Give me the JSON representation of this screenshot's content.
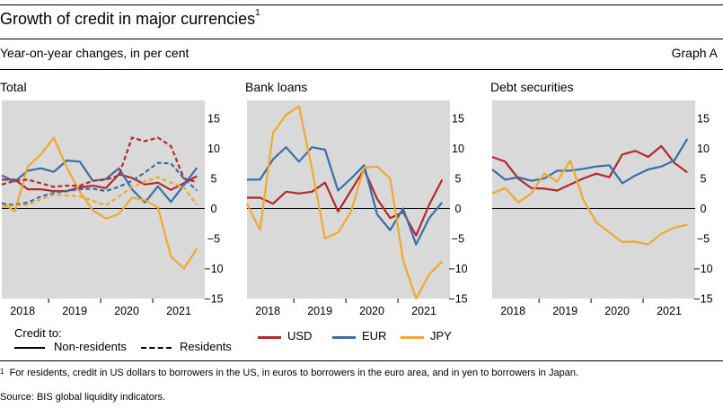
{
  "header": {
    "title": "Growth of credit in major currencies",
    "title_note": "1",
    "subtitle": "Year-on-year changes, in per cent",
    "graph_label": "Graph A"
  },
  "chart_data": [
    {
      "type": "line",
      "title": "Total",
      "ylim": [
        -15,
        18
      ],
      "yticks": [
        15,
        10,
        5,
        0,
        -5,
        -10,
        -15
      ],
      "xlim": [
        2017.6,
        2021.5
      ],
      "xticks": [
        {
          "x": 2018.0,
          "label": "2018"
        },
        {
          "x": 2019.0,
          "label": "2019"
        },
        {
          "x": 2020.0,
          "label": "2020"
        },
        {
          "x": 2021.0,
          "label": "2021"
        }
      ],
      "series": [
        {
          "currency": "USD",
          "credit_to": "Non-residents",
          "style": "solid",
          "x": [
            2017.6,
            2017.85,
            2018.1,
            2018.35,
            2018.6,
            2018.85,
            2019.1,
            2019.35,
            2019.6,
            2019.85,
            2020.1,
            2020.35,
            2020.6,
            2020.85,
            2021.1,
            2021.35
          ],
          "values": [
            4.8,
            4.8,
            3.2,
            3.2,
            2.9,
            2.9,
            3.5,
            3.8,
            3.4,
            5.7,
            5.1,
            4.0,
            4.3,
            3.1,
            4.2,
            5.4
          ]
        },
        {
          "currency": "EUR",
          "credit_to": "Non-residents",
          "style": "solid",
          "x": [
            2017.6,
            2017.85,
            2018.1,
            2018.35,
            2018.6,
            2018.85,
            2019.1,
            2019.35,
            2019.6,
            2019.85,
            2020.1,
            2020.35,
            2020.6,
            2020.85,
            2021.1,
            2021.35
          ],
          "values": [
            5.5,
            4.5,
            6.3,
            6.7,
            6.1,
            8.0,
            7.8,
            4.6,
            4.9,
            6.7,
            3.2,
            1.0,
            3.7,
            1.1,
            3.9,
            6.8
          ]
        },
        {
          "currency": "JPY",
          "credit_to": "Non-residents",
          "style": "solid",
          "x": [
            2017.6,
            2017.85,
            2018.1,
            2018.35,
            2018.6,
            2018.85,
            2019.1,
            2019.35,
            2019.6,
            2019.85,
            2020.1,
            2020.35,
            2020.6,
            2020.85,
            2021.1,
            2021.35
          ],
          "values": [
            1.0,
            -0.5,
            7.0,
            9.0,
            11.8,
            6.8,
            2.8,
            -0.3,
            -1.7,
            -0.9,
            1.8,
            1.4,
            0.2,
            -8.0,
            -10.0,
            -6.7
          ]
        },
        {
          "currency": "USD",
          "credit_to": "Residents",
          "style": "dashed",
          "x": [
            2017.6,
            2017.85,
            2018.1,
            2018.35,
            2018.6,
            2018.85,
            2019.1,
            2019.35,
            2019.6,
            2019.85,
            2020.1,
            2020.35,
            2020.6,
            2020.85,
            2021.1,
            2021.35
          ],
          "values": [
            4.0,
            4.6,
            4.8,
            4.2,
            3.6,
            3.8,
            3.8,
            4.6,
            4.8,
            5.5,
            11.8,
            11.2,
            11.8,
            10.4,
            5.0,
            4.4
          ]
        },
        {
          "currency": "EUR",
          "credit_to": "Residents",
          "style": "dashed",
          "x": [
            2017.6,
            2017.85,
            2018.1,
            2018.35,
            2018.6,
            2018.85,
            2019.1,
            2019.35,
            2019.6,
            2019.85,
            2020.1,
            2020.35,
            2020.6,
            2020.85,
            2021.1,
            2021.35
          ],
          "values": [
            0.8,
            0.6,
            1.0,
            2.0,
            2.6,
            2.9,
            3.2,
            3.3,
            2.9,
            3.6,
            4.6,
            6.0,
            7.6,
            7.5,
            5.0,
            3.0
          ]
        },
        {
          "currency": "JPY",
          "credit_to": "Residents",
          "style": "dashed",
          "x": [
            2017.6,
            2017.85,
            2018.1,
            2018.35,
            2018.6,
            2018.85,
            2019.1,
            2019.35,
            2019.6,
            2019.85,
            2020.1,
            2020.35,
            2020.6,
            2020.85,
            2021.1,
            2021.35
          ],
          "values": [
            0.2,
            0.5,
            0.6,
            1.5,
            2.3,
            2.2,
            2.0,
            1.3,
            0.5,
            2.0,
            3.6,
            4.5,
            5.2,
            4.3,
            3.5,
            0.6
          ]
        }
      ]
    },
    {
      "type": "line",
      "title": "Bank loans",
      "ylim": [
        -15,
        18
      ],
      "yticks": [
        15,
        10,
        5,
        0,
        -5,
        -10,
        -15
      ],
      "xlim": [
        2017.6,
        2021.5
      ],
      "xticks": [
        {
          "x": 2018.0,
          "label": "2018"
        },
        {
          "x": 2019.0,
          "label": "2019"
        },
        {
          "x": 2020.0,
          "label": "2020"
        },
        {
          "x": 2021.0,
          "label": "2021"
        }
      ],
      "series": [
        {
          "currency": "USD",
          "x": [
            2017.6,
            2017.85,
            2018.1,
            2018.35,
            2018.6,
            2018.85,
            2019.1,
            2019.35,
            2019.6,
            2019.85,
            2020.1,
            2020.35,
            2020.6,
            2020.85,
            2021.1,
            2021.35
          ],
          "values": [
            1.8,
            1.8,
            0.8,
            2.8,
            2.5,
            2.8,
            4.3,
            -0.5,
            3.0,
            6.5,
            1.6,
            -1.6,
            -0.6,
            -4.5,
            0.6,
            4.8
          ]
        },
        {
          "currency": "EUR",
          "x": [
            2017.6,
            2017.85,
            2018.1,
            2018.35,
            2018.6,
            2018.85,
            2019.1,
            2019.35,
            2019.6,
            2019.85,
            2020.1,
            2020.35,
            2020.6,
            2020.85,
            2021.1,
            2021.35
          ],
          "values": [
            4.8,
            4.8,
            8.2,
            10.2,
            7.8,
            10.2,
            9.8,
            3.0,
            5.0,
            7.2,
            -1.0,
            -3.6,
            0.0,
            -6.0,
            -1.6,
            1.0
          ]
        },
        {
          "currency": "JPY",
          "x": [
            2017.6,
            2017.85,
            2018.1,
            2018.35,
            2018.6,
            2018.85,
            2019.1,
            2019.35,
            2019.6,
            2019.85,
            2020.1,
            2020.35,
            2020.6,
            2020.85,
            2021.1,
            2021.35
          ],
          "values": [
            0.8,
            -3.6,
            12.6,
            15.6,
            17.0,
            6.6,
            -5.0,
            -4.0,
            -0.5,
            6.8,
            7.0,
            5.0,
            -8.6,
            -15.0,
            -11.0,
            -8.8
          ]
        }
      ]
    },
    {
      "type": "line",
      "title": "Debt securities",
      "ylim": [
        -15,
        18
      ],
      "yticks": [
        15,
        10,
        5,
        0,
        -5,
        -10,
        -15
      ],
      "xlim": [
        2017.6,
        2021.5
      ],
      "xticks": [
        {
          "x": 2018.0,
          "label": "2018"
        },
        {
          "x": 2019.0,
          "label": "2019"
        },
        {
          "x": 2020.0,
          "label": "2020"
        },
        {
          "x": 2021.0,
          "label": "2021"
        }
      ],
      "series": [
        {
          "currency": "USD",
          "x": [
            2017.6,
            2017.85,
            2018.1,
            2018.35,
            2018.6,
            2018.85,
            2019.1,
            2019.35,
            2019.6,
            2019.85,
            2020.1,
            2020.35,
            2020.6,
            2020.85,
            2021.1,
            2021.35
          ],
          "values": [
            8.6,
            7.8,
            5.0,
            3.4,
            3.3,
            3.0,
            4.0,
            5.0,
            5.8,
            5.2,
            9.0,
            9.6,
            8.6,
            10.4,
            7.6,
            6.0
          ]
        },
        {
          "currency": "EUR",
          "x": [
            2017.6,
            2017.85,
            2018.1,
            2018.35,
            2018.6,
            2018.85,
            2019.1,
            2019.35,
            2019.6,
            2019.85,
            2020.1,
            2020.35,
            2020.6,
            2020.85,
            2021.1,
            2021.35
          ],
          "values": [
            6.5,
            4.8,
            5.2,
            4.6,
            5.0,
            6.3,
            6.3,
            6.6,
            7.0,
            7.2,
            4.2,
            5.5,
            6.5,
            7.0,
            8.0,
            11.6
          ]
        },
        {
          "currency": "JPY",
          "x": [
            2017.6,
            2017.85,
            2018.1,
            2018.35,
            2018.6,
            2018.85,
            2019.1,
            2019.35,
            2019.6,
            2019.85,
            2020.1,
            2020.35,
            2020.6,
            2020.85,
            2021.1,
            2021.35
          ],
          "values": [
            2.5,
            3.4,
            1.0,
            2.5,
            5.8,
            4.5,
            8.0,
            1.5,
            -2.3,
            -4.0,
            -5.6,
            -5.5,
            -6.0,
            -4.2,
            -3.2,
            -2.7
          ]
        }
      ]
    }
  ],
  "legend": {
    "credit_to_label": "Credit to:",
    "non_residents": "Non-residents",
    "residents": "Residents",
    "usd": "USD",
    "eur": "EUR",
    "jpy": "JPY"
  },
  "colors": {
    "USD": "#b22a2e",
    "EUR": "#3a6ea5",
    "JPY": "#f0a830",
    "panel_bg": "#d9d9d9"
  },
  "footnote": {
    "marker": "1",
    "text": "For residents, credit in US dollars to borrowers in the US, in euros to borrowers in the euro area, and in yen to borrowers in Japan."
  },
  "source": "Source: BIS global liquidity indicators."
}
